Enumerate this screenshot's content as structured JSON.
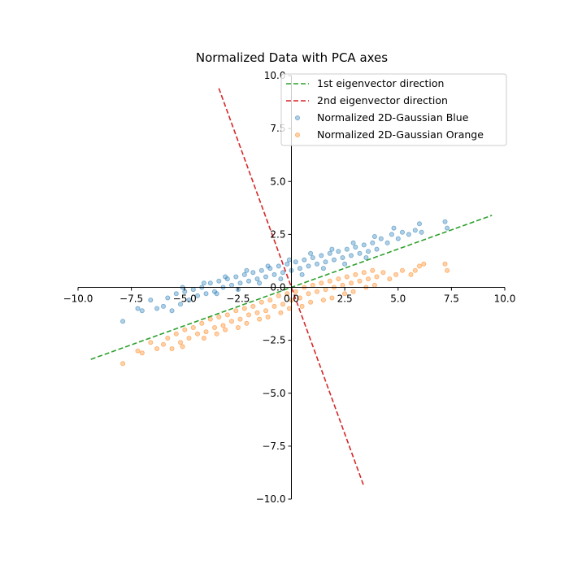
{
  "chart_data": {
    "type": "scatter",
    "title": "Normalized Data with PCA axes",
    "xlabel": "",
    "ylabel": "",
    "xlim": [
      -10,
      10
    ],
    "ylim": [
      -10,
      10
    ],
    "spines": "centered",
    "grid": false,
    "legend_position": "top-right",
    "x_ticks": [
      -10.0,
      -7.5,
      -5.0,
      -2.5,
      0.0,
      2.5,
      5.0,
      7.5,
      10.0
    ],
    "y_ticks": [
      -10.0,
      -7.5,
      -5.0,
      -2.5,
      0.0,
      2.5,
      5.0,
      7.5,
      10.0
    ],
    "x_tick_labels": [
      "−10.0",
      "−7.5",
      "−5.0",
      "−2.5",
      "0.0",
      "2.5",
      "5.0",
      "7.5",
      "10.0"
    ],
    "y_tick_labels": [
      "−10.0",
      "−7.5",
      "−5.0",
      "−2.5",
      "0.0",
      "2.5",
      "5.0",
      "7.5",
      "10.0"
    ],
    "lines": [
      {
        "name": "1st eigenvector direction",
        "color": "#2ca02c",
        "style": "dashed",
        "points": [
          [
            -9.4,
            -3.4
          ],
          [
            9.4,
            3.4
          ]
        ]
      },
      {
        "name": "2nd eigenvector direction",
        "color": "#d62728",
        "style": "dashed",
        "points": [
          [
            -3.4,
            9.4
          ],
          [
            3.4,
            -9.4
          ]
        ]
      }
    ],
    "series": [
      {
        "name": "Normalized 2D-Gaussian Blue",
        "color": "#1f77b4",
        "points": [
          [
            -7.9,
            -1.6
          ],
          [
            -7.2,
            -1.0
          ],
          [
            -7.0,
            -1.1
          ],
          [
            -6.6,
            -0.6
          ],
          [
            -6.3,
            -1.0
          ],
          [
            -6.0,
            -0.9
          ],
          [
            -5.8,
            -0.5
          ],
          [
            -5.6,
            -1.1
          ],
          [
            -5.4,
            -0.3
          ],
          [
            -5.2,
            -0.8
          ],
          [
            -5.0,
            -0.2
          ],
          [
            -4.8,
            -0.6
          ],
          [
            -4.6,
            -0.1
          ],
          [
            -4.4,
            -0.4
          ],
          [
            -4.2,
            0.0
          ],
          [
            -4.0,
            -0.3
          ],
          [
            -3.8,
            0.2
          ],
          [
            -3.6,
            -0.2
          ],
          [
            -3.4,
            0.3
          ],
          [
            -3.2,
            0.0
          ],
          [
            -3.0,
            0.4
          ],
          [
            -2.8,
            0.1
          ],
          [
            -2.6,
            0.5
          ],
          [
            -2.4,
            0.2
          ],
          [
            -2.2,
            0.6
          ],
          [
            -2.0,
            0.3
          ],
          [
            -1.8,
            0.7
          ],
          [
            -1.6,
            0.4
          ],
          [
            -1.4,
            0.8
          ],
          [
            -1.2,
            0.5
          ],
          [
            -1.0,
            0.9
          ],
          [
            -0.8,
            0.6
          ],
          [
            -0.6,
            1.0
          ],
          [
            -0.4,
            0.7
          ],
          [
            -0.2,
            1.1
          ],
          [
            0.0,
            0.8
          ],
          [
            0.2,
            1.2
          ],
          [
            0.4,
            0.9
          ],
          [
            0.6,
            1.3
          ],
          [
            0.8,
            1.0
          ],
          [
            1.0,
            1.4
          ],
          [
            1.2,
            1.1
          ],
          [
            1.4,
            1.5
          ],
          [
            1.6,
            1.2
          ],
          [
            1.8,
            1.6
          ],
          [
            2.0,
            1.3
          ],
          [
            2.2,
            1.7
          ],
          [
            2.4,
            1.4
          ],
          [
            2.6,
            1.8
          ],
          [
            2.8,
            1.5
          ],
          [
            3.0,
            1.9
          ],
          [
            3.2,
            1.6
          ],
          [
            3.4,
            2.0
          ],
          [
            3.6,
            1.7
          ],
          [
            3.8,
            2.1
          ],
          [
            4.0,
            1.8
          ],
          [
            4.2,
            2.3
          ],
          [
            4.5,
            2.1
          ],
          [
            4.7,
            2.5
          ],
          [
            5.0,
            2.3
          ],
          [
            5.2,
            2.6
          ],
          [
            5.5,
            2.5
          ],
          [
            5.8,
            2.7
          ],
          [
            6.0,
            3.0
          ],
          [
            6.1,
            2.6
          ],
          [
            7.2,
            3.1
          ],
          [
            7.3,
            2.8
          ],
          [
            4.8,
            2.8
          ],
          [
            3.9,
            2.4
          ],
          [
            2.9,
            2.1
          ],
          [
            1.9,
            1.8
          ],
          [
            0.9,
            1.6
          ],
          [
            -0.1,
            1.3
          ],
          [
            -1.1,
            1.0
          ],
          [
            -2.1,
            0.8
          ],
          [
            -3.1,
            0.5
          ],
          [
            -4.1,
            0.2
          ],
          [
            -5.1,
            0.0
          ],
          [
            -0.5,
            0.4
          ],
          [
            0.5,
            0.6
          ],
          [
            1.5,
            0.9
          ],
          [
            2.5,
            1.1
          ],
          [
            -1.5,
            0.2
          ],
          [
            -2.5,
            -0.1
          ],
          [
            3.5,
            1.4
          ],
          [
            -3.5,
            -0.3
          ]
        ]
      },
      {
        "name": "Normalized 2D-Gaussian Orange",
        "color": "#ff7f0e",
        "points": [
          [
            -7.9,
            -3.6
          ],
          [
            -7.2,
            -3.0
          ],
          [
            -7.0,
            -3.1
          ],
          [
            -6.6,
            -2.6
          ],
          [
            -6.3,
            -2.9
          ],
          [
            -6.0,
            -2.7
          ],
          [
            -5.8,
            -2.4
          ],
          [
            -5.6,
            -2.9
          ],
          [
            -5.4,
            -2.2
          ],
          [
            -5.2,
            -2.6
          ],
          [
            -5.0,
            -2.0
          ],
          [
            -4.8,
            -2.4
          ],
          [
            -4.6,
            -1.9
          ],
          [
            -4.4,
            -2.2
          ],
          [
            -4.2,
            -1.7
          ],
          [
            -4.0,
            -2.1
          ],
          [
            -3.8,
            -1.5
          ],
          [
            -3.6,
            -1.9
          ],
          [
            -3.4,
            -1.4
          ],
          [
            -3.2,
            -1.8
          ],
          [
            -3.0,
            -1.3
          ],
          [
            -2.8,
            -1.6
          ],
          [
            -2.6,
            -1.1
          ],
          [
            -2.4,
            -1.5
          ],
          [
            -2.2,
            -1.0
          ],
          [
            -2.0,
            -1.3
          ],
          [
            -1.8,
            -0.9
          ],
          [
            -1.6,
            -1.2
          ],
          [
            -1.4,
            -0.7
          ],
          [
            -1.2,
            -1.1
          ],
          [
            -1.0,
            -0.6
          ],
          [
            -0.8,
            -0.9
          ],
          [
            -0.6,
            -0.4
          ],
          [
            -0.4,
            -0.8
          ],
          [
            -0.2,
            -0.3
          ],
          [
            0.0,
            -0.6
          ],
          [
            0.2,
            -0.2
          ],
          [
            0.4,
            -0.5
          ],
          [
            0.6,
            0.0
          ],
          [
            0.8,
            -0.3
          ],
          [
            1.0,
            0.1
          ],
          [
            1.2,
            -0.2
          ],
          [
            1.4,
            0.2
          ],
          [
            1.6,
            -0.1
          ],
          [
            1.8,
            0.3
          ],
          [
            2.0,
            0.0
          ],
          [
            2.2,
            0.4
          ],
          [
            2.4,
            0.1
          ],
          [
            2.6,
            0.5
          ],
          [
            2.8,
            0.2
          ],
          [
            3.0,
            0.6
          ],
          [
            3.2,
            0.3
          ],
          [
            3.4,
            0.7
          ],
          [
            3.6,
            0.4
          ],
          [
            3.8,
            0.8
          ],
          [
            4.0,
            0.5
          ],
          [
            4.3,
            0.7
          ],
          [
            4.6,
            0.4
          ],
          [
            4.9,
            0.6
          ],
          [
            5.2,
            0.8
          ],
          [
            5.6,
            0.6
          ],
          [
            5.8,
            0.8
          ],
          [
            6.0,
            1.0
          ],
          [
            6.2,
            1.1
          ],
          [
            7.2,
            1.1
          ],
          [
            7.3,
            0.8
          ],
          [
            3.9,
            0.1
          ],
          [
            2.9,
            -0.2
          ],
          [
            1.9,
            -0.5
          ],
          [
            0.9,
            -0.7
          ],
          [
            -0.1,
            -1.0
          ],
          [
            -1.1,
            -1.4
          ],
          [
            -2.1,
            -1.7
          ],
          [
            -3.1,
            -2.0
          ],
          [
            -4.1,
            -2.4
          ],
          [
            -5.1,
            -2.8
          ],
          [
            -0.5,
            -1.2
          ],
          [
            0.5,
            -0.9
          ],
          [
            1.5,
            -0.6
          ],
          [
            2.5,
            -0.3
          ],
          [
            -1.5,
            -1.5
          ],
          [
            -2.5,
            -1.9
          ],
          [
            3.5,
            0.0
          ],
          [
            -3.5,
            -2.2
          ]
        ]
      }
    ]
  }
}
